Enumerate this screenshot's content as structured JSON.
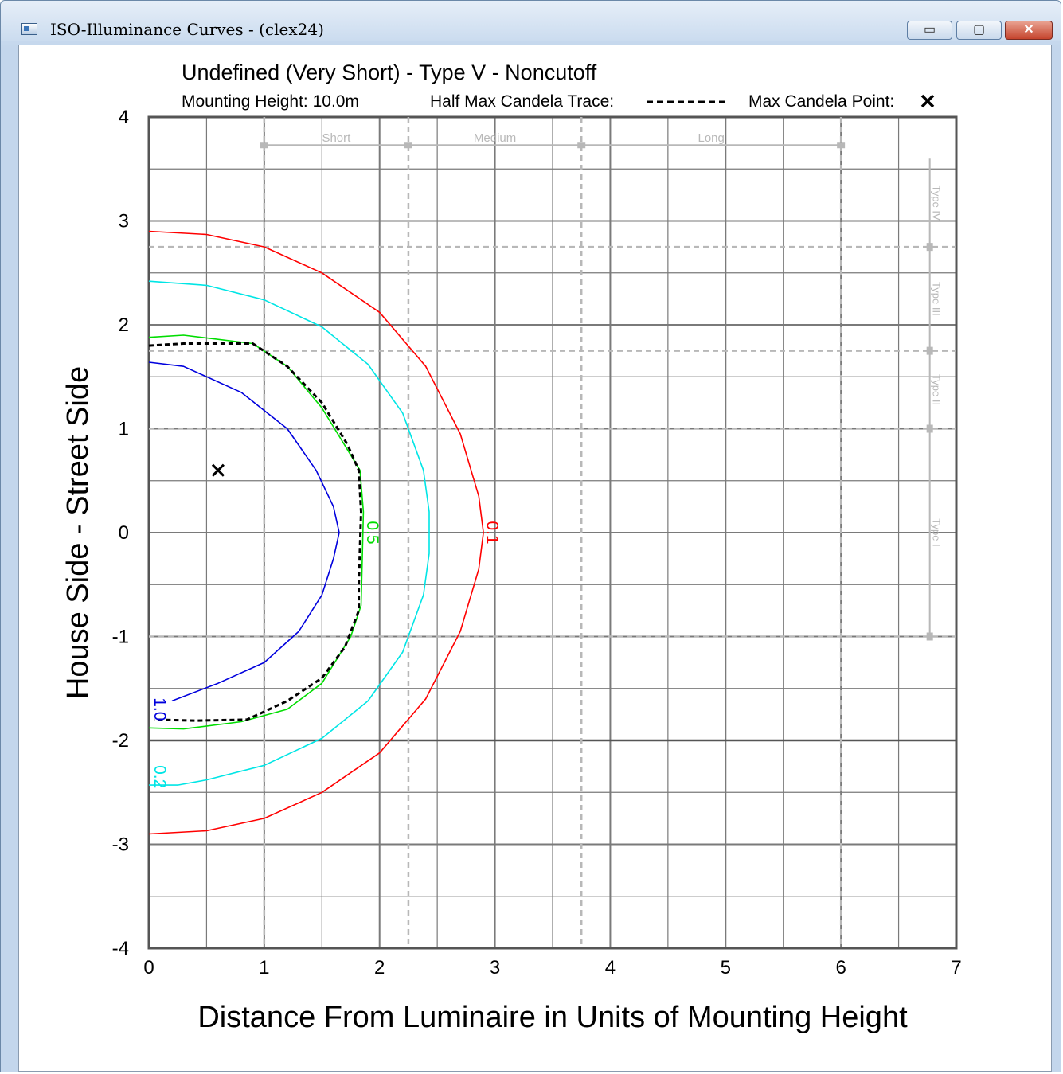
{
  "window": {
    "title": "ISO-Illuminance Curves - (clex24)",
    "minimize_glyph": "▭",
    "maximize_glyph": "▢",
    "close_glyph": "✕"
  },
  "chart_data": {
    "type": "line",
    "title": "Undefined (Very Short) - Type V - Noncutoff",
    "mounting_height_label": "Mounting Height: 10.0m",
    "half_max_legend_label": "Half Max Candela Trace:",
    "max_point_legend_label": "Max Candela Point:",
    "xlabel": "Distance From Luminaire in Units of Mounting Height",
    "ylabel": "House Side  -  Street Side",
    "xlim": [
      0,
      7
    ],
    "ylim": [
      -4,
      4
    ],
    "x_ticks": [
      "0",
      "1",
      "2",
      "3",
      "4",
      "5",
      "6",
      "7"
    ],
    "y_ticks": [
      "4",
      "3",
      "2",
      "1",
      "0",
      "-1",
      "-2",
      "-3",
      "-4"
    ],
    "grid": true,
    "minor_grid_step": 0.5,
    "range_markers": [
      1,
      2.25,
      3.75,
      6
    ],
    "range_labels": [
      "Short",
      "Medium",
      "Long"
    ],
    "type_markers": [
      2.75,
      1.75,
      1,
      -1
    ],
    "type_labels": [
      "Type IV",
      "Type III",
      "Type II",
      "Type I"
    ],
    "series": [
      {
        "name": "0.1",
        "color": "#ff0000",
        "points": [
          [
            0,
            2.9
          ],
          [
            0.5,
            2.87
          ],
          [
            1,
            2.75
          ],
          [
            1.5,
            2.5
          ],
          [
            2,
            2.12
          ],
          [
            2.4,
            1.6
          ],
          [
            2.7,
            0.95
          ],
          [
            2.86,
            0.35
          ],
          [
            2.9,
            0
          ],
          [
            2.86,
            -0.35
          ],
          [
            2.7,
            -0.95
          ],
          [
            2.4,
            -1.6
          ],
          [
            2,
            -2.12
          ],
          [
            1.5,
            -2.5
          ],
          [
            1,
            -2.75
          ],
          [
            0.5,
            -2.87
          ],
          [
            0,
            -2.9
          ]
        ]
      },
      {
        "name": "0.2",
        "color": "#00e5e5",
        "points": [
          [
            0,
            2.42
          ],
          [
            0.5,
            2.38
          ],
          [
            1,
            2.24
          ],
          [
            1.5,
            1.98
          ],
          [
            1.9,
            1.62
          ],
          [
            2.2,
            1.15
          ],
          [
            2.38,
            0.6
          ],
          [
            2.43,
            0.2
          ],
          [
            2.43,
            -0.2
          ],
          [
            2.38,
            -0.6
          ],
          [
            2.2,
            -1.15
          ],
          [
            1.9,
            -1.62
          ],
          [
            1.5,
            -1.98
          ],
          [
            1,
            -2.24
          ],
          [
            0.5,
            -2.38
          ],
          [
            0.25,
            -2.43
          ],
          [
            0,
            -2.43
          ]
        ]
      },
      {
        "name": "0.5",
        "color": "#00dd00",
        "points": [
          [
            0,
            1.88
          ],
          [
            0.3,
            1.9
          ],
          [
            0.9,
            1.82
          ],
          [
            1.2,
            1.6
          ],
          [
            1.5,
            1.2
          ],
          [
            1.72,
            0.8
          ],
          [
            1.83,
            0.6
          ],
          [
            1.86,
            0.2
          ],
          [
            1.85,
            -0.25
          ],
          [
            1.84,
            -0.7
          ],
          [
            1.75,
            -1.0
          ],
          [
            1.5,
            -1.45
          ],
          [
            1.2,
            -1.7
          ],
          [
            0.8,
            -1.82
          ],
          [
            0.3,
            -1.89
          ],
          [
            0,
            -1.88
          ]
        ]
      },
      {
        "name": "1.0",
        "color": "#0000dd",
        "points": [
          [
            0,
            1.64
          ],
          [
            0.3,
            1.6
          ],
          [
            0.8,
            1.35
          ],
          [
            1.2,
            1.0
          ],
          [
            1.45,
            0.6
          ],
          [
            1.6,
            0.25
          ],
          [
            1.65,
            0
          ],
          [
            1.6,
            -0.25
          ],
          [
            1.5,
            -0.6
          ],
          [
            1.3,
            -0.95
          ],
          [
            1.0,
            -1.25
          ],
          [
            0.6,
            -1.45
          ],
          [
            0.2,
            -1.62
          ]
        ]
      },
      {
        "name": "Half Max Candela Trace",
        "color": "#000000",
        "points": [
          [
            0,
            1.8
          ],
          [
            0.3,
            1.82
          ],
          [
            0.9,
            1.82
          ],
          [
            1.2,
            1.6
          ],
          [
            1.5,
            1.25
          ],
          [
            1.72,
            0.85
          ],
          [
            1.82,
            0.6
          ],
          [
            1.84,
            0.2
          ],
          [
            1.82,
            -0.5
          ],
          [
            1.82,
            -0.75
          ],
          [
            1.7,
            -1.1
          ],
          [
            1.5,
            -1.4
          ],
          [
            1.2,
            -1.62
          ],
          [
            0.85,
            -1.8
          ],
          [
            0.4,
            -1.81
          ],
          [
            0.05,
            -1.8
          ]
        ]
      }
    ],
    "max_candela_point": {
      "x": 0.6,
      "y": 0.6
    }
  }
}
